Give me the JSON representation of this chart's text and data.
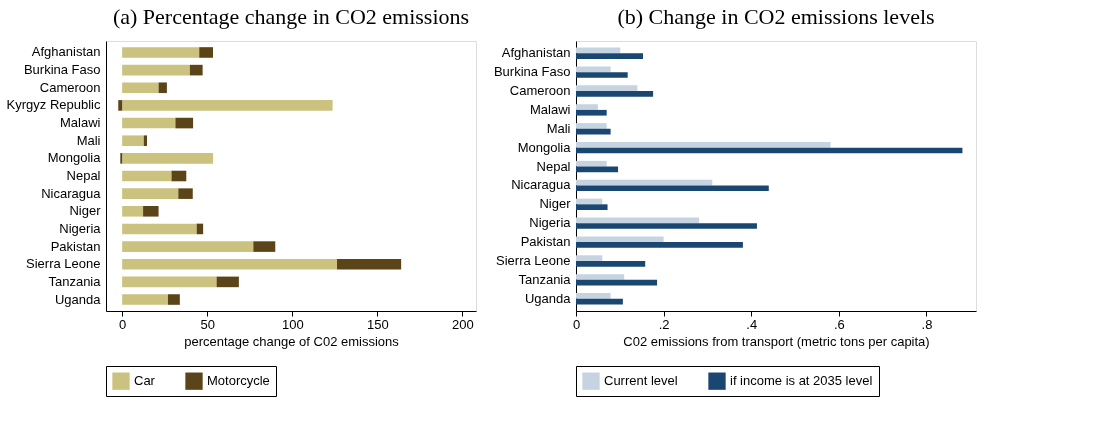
{
  "chart_data": [
    {
      "type": "bar",
      "title": "(a) Percentage change in CO2 emissions",
      "orientation": "horizontal",
      "stacked": true,
      "xlabel": "percentage change of C02 emissions",
      "categories": [
        "Afghanistan",
        "Burkina Faso",
        "Cameroon",
        "Kyrgyz Republic",
        "Malawi",
        "Mali",
        "Mongolia",
        "Nepal",
        "Nicaragua",
        "Niger",
        "Nigeria",
        "Pakistan",
        "Sierra Leone",
        "Tanzania",
        "Uganda"
      ],
      "series": [
        {
          "name": "Car",
          "color": "#cbc27f",
          "values": [
            45.3,
            39.8,
            21.4,
            123.7,
            31.3,
            12.7,
            53.4,
            29.0,
            33.0,
            12.3,
            43.8,
            77.1,
            126.3,
            55.5,
            26.9
          ]
        },
        {
          "name": "Motorcycle",
          "color": "#5c4419",
          "values": [
            8.1,
            7.5,
            4.9,
            -2.3,
            10.4,
            1.9,
            -1.1,
            8.7,
            8.5,
            9.1,
            3.8,
            12.9,
            37.7,
            13.1,
            7.0
          ]
        }
      ],
      "xlim": [
        -9.5,
        208
      ],
      "xticks": [
        0,
        50,
        100,
        150,
        200
      ],
      "legend": "bottom",
      "grid": false
    },
    {
      "type": "bar",
      "title": "(b) Change in CO2 emissions levels",
      "orientation": "horizontal",
      "xlabel": "C02 emissions from transport (metric tons per capita)",
      "categories": [
        "Afghanistan",
        "Burkina Faso",
        "Cameroon",
        "Malawi",
        "Mali",
        "Mongolia",
        "Nepal",
        "Nicaragua",
        "Niger",
        "Nigeria",
        "Pakistan",
        "Sierra Leone",
        "Tanzania",
        "Uganda"
      ],
      "series": [
        {
          "name": "Current level",
          "color": "#c6d3e0",
          "values": [
            0.101,
            0.079,
            0.14,
            0.05,
            0.07,
            0.581,
            0.07,
            0.311,
            0.06,
            0.281,
            0.2,
            0.06,
            0.11,
            0.079
          ]
        },
        {
          "name": "if income is at 2035 level",
          "color": "#1a4772",
          "values": [
            0.153,
            0.118,
            0.176,
            0.07,
            0.079,
            0.882,
            0.096,
            0.44,
            0.072,
            0.413,
            0.381,
            0.158,
            0.185,
            0.107
          ]
        }
      ],
      "xlim": [
        0,
        0.913
      ],
      "xticks": [
        0,
        {
          "value": 0.2,
          "label": ".2"
        },
        {
          "value": 0.4,
          "label": ".4"
        },
        {
          "value": 0.6,
          "label": ".6"
        },
        {
          "value": 0.8,
          "label": ".8"
        }
      ],
      "legend": "bottom",
      "grid": false
    }
  ]
}
